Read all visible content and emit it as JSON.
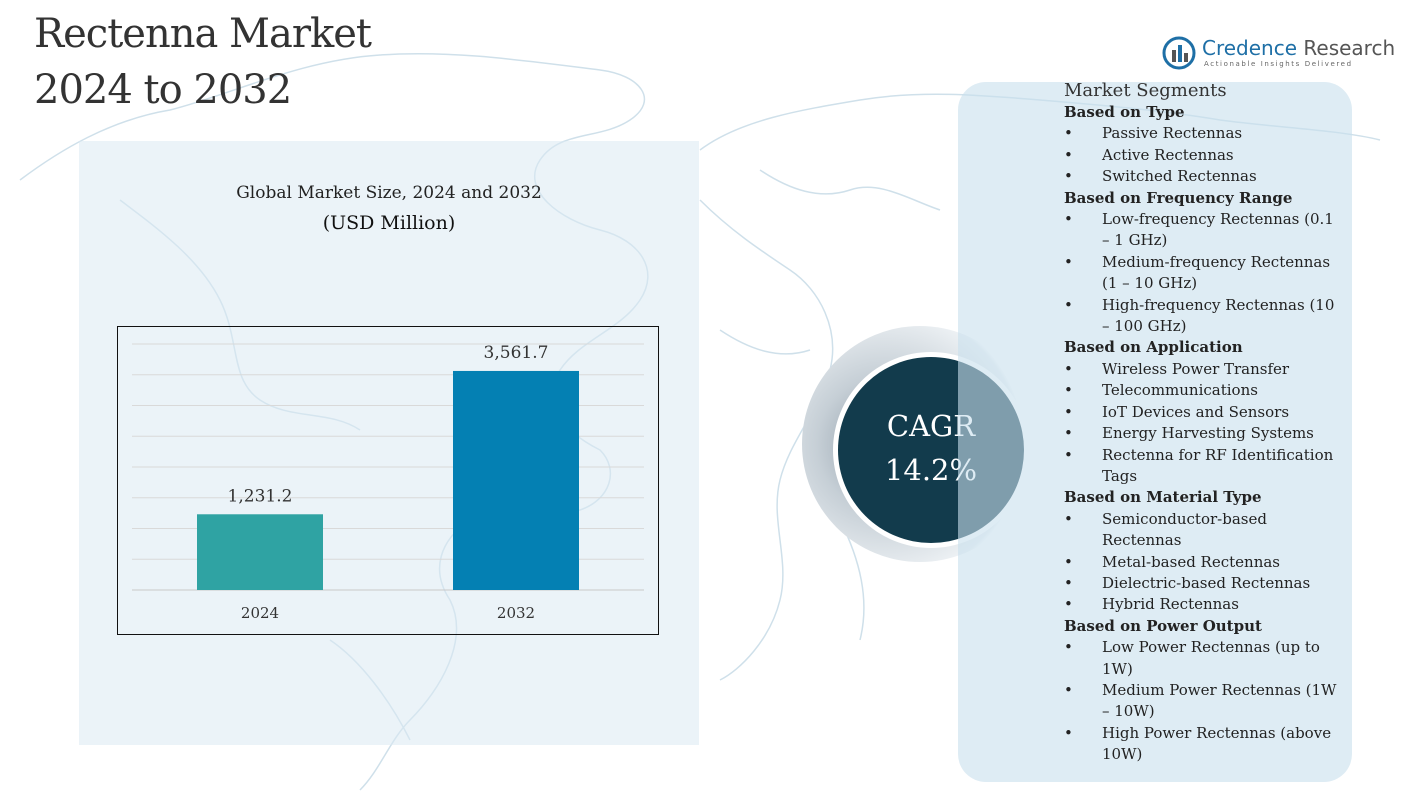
{
  "title_lines": [
    "Rectenna Market",
    "2024 to 2032"
  ],
  "logo": {
    "brand_primary": "Credence",
    "brand_secondary": "Research",
    "tagline": "Actionable Insights Delivered",
    "color": "#1e6fa6"
  },
  "chart_data": {
    "type": "bar",
    "title": "Global Market Size, 2024 and 2032",
    "unit_label": "(USD Million)",
    "categories": [
      "2024",
      "2032"
    ],
    "values": [
      1231.2,
      3561.7
    ],
    "value_labels": [
      "1,231.2",
      "3,561.7"
    ],
    "colors": [
      "#2fa3a3",
      "#0480b3"
    ],
    "ylim": [
      0,
      4000
    ],
    "grid": true
  },
  "cagr": {
    "label": "CAGR",
    "value": "14.2%"
  },
  "segments": {
    "heading": "Market Segments",
    "groups": [
      {
        "title": "Based on Type",
        "items": [
          "Passive Rectennas",
          "Active Rectennas",
          "Switched Rectennas"
        ]
      },
      {
        "title": "Based on Frequency Range",
        "items": [
          "Low-frequency Rectennas (0.1 – 1 GHz)",
          "Medium-frequency Rectennas (1 – 10 GHz)",
          "High-frequency Rectennas (10 – 100 GHz)"
        ]
      },
      {
        "title": "Based on Application",
        "items": [
          "Wireless Power Transfer",
          "Telecommunications",
          "IoT Devices and Sensors",
          "Energy Harvesting Systems",
          "Rectenna for RF Identification Tags"
        ]
      },
      {
        "title": "Based on Material Type",
        "items": [
          "Semiconductor-based Rectennas",
          "Metal-based Rectennas",
          "Dielectric-based Rectennas",
          "Hybrid Rectennas"
        ]
      },
      {
        "title": "Based on Power Output",
        "items": [
          "Low Power Rectennas (up to 1W)",
          "Medium Power Rectennas (1W – 10W)",
          "High Power Rectennas (above 10W)"
        ]
      }
    ]
  }
}
